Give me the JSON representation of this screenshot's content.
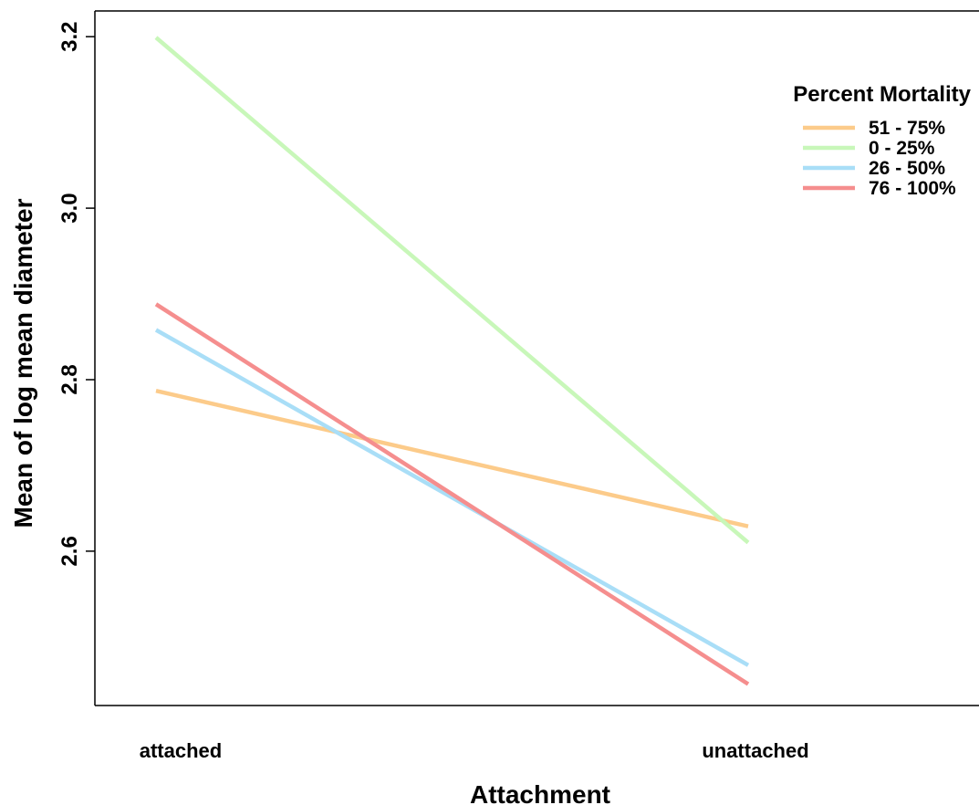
{
  "chart_data": {
    "type": "line",
    "title": "",
    "xlabel": "Attachment",
    "ylabel": "Mean of log mean diameter",
    "categories": [
      "attached",
      "unattached"
    ],
    "ylim": [
      2.42,
      3.23
    ],
    "yticks": [
      "2.6",
      "2.8",
      "3.0",
      "3.2"
    ],
    "grid": false,
    "legend": {
      "title": "Percent Mortality",
      "placement": "top-right"
    },
    "series": [
      {
        "name": "51 - 75%",
        "color": "#fccb8a",
        "values": [
          2.787,
          2.629
        ]
      },
      {
        "name": "0 - 25%",
        "color": "#c8f7b9",
        "values": [
          3.199,
          2.61
        ]
      },
      {
        "name": "26 - 50%",
        "color": "#a9def7",
        "values": [
          2.858,
          2.467
        ]
      },
      {
        "name": "76 - 100%",
        "color": "#f58e8e",
        "values": [
          2.888,
          2.445
        ]
      }
    ]
  }
}
